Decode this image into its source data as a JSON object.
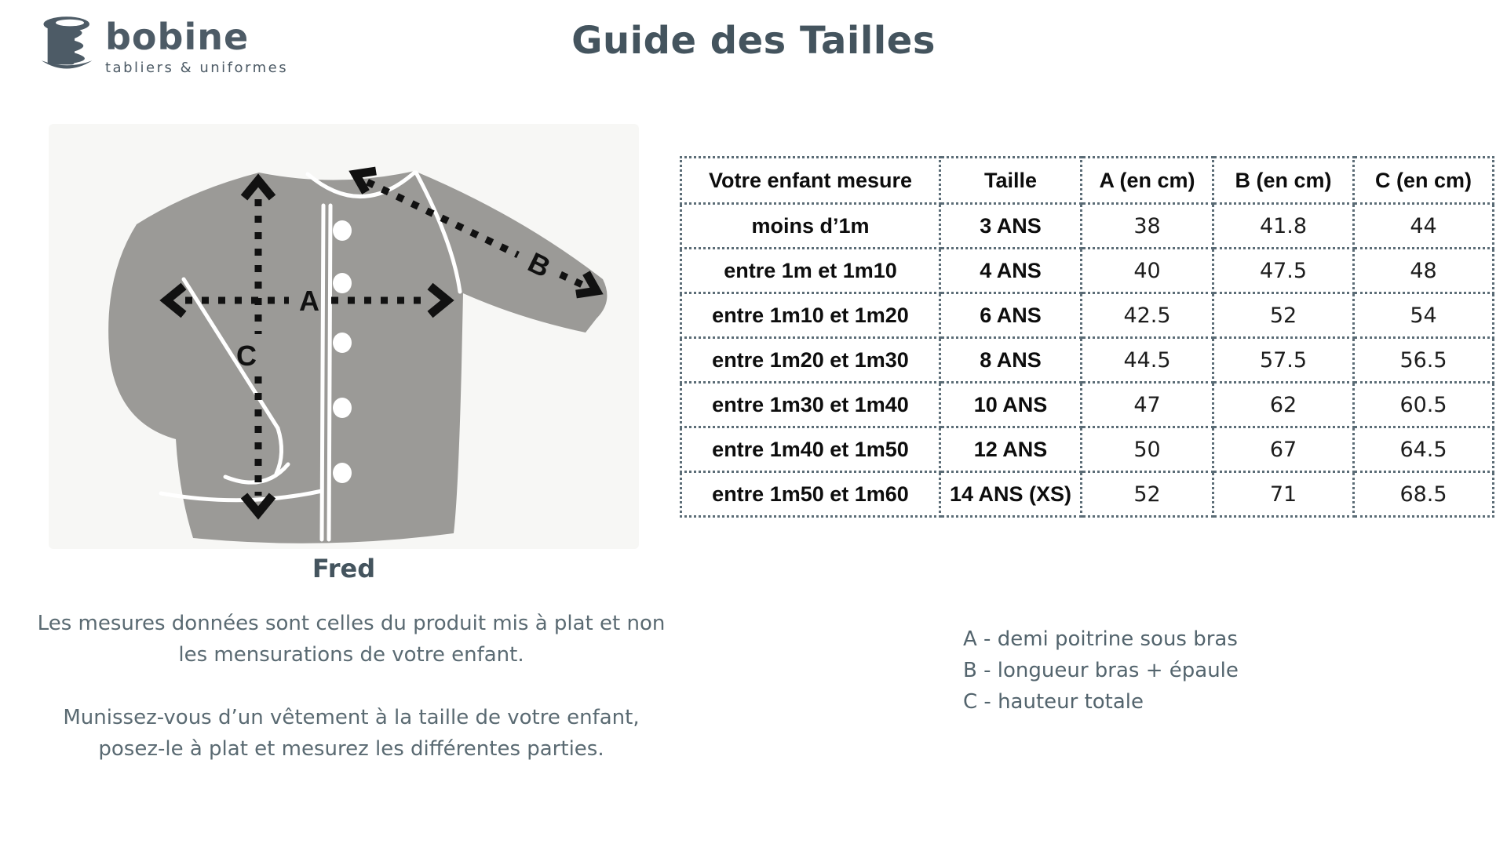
{
  "brand": {
    "name": "bobine",
    "tagline": "tabliers & uniformes"
  },
  "header": {
    "title": "Guide des Tailles"
  },
  "product": {
    "name": "Fred"
  },
  "notes": [
    "Les mesures données sont celles du produit mis à plat et non les mensurations de votre enfant.",
    "Munissez-vous d’un vêtement à la taille de votre enfant, posez-le à plat et mesurez les différentes parties."
  ],
  "legend": [
    "A - demi poitrine sous bras",
    "B - longueur bras + épaule",
    "C - hauteur totale"
  ],
  "size_table": {
    "columns": [
      "Votre enfant mesure",
      "Taille",
      "A (en cm)",
      "B (en cm)",
      "C (en cm)"
    ],
    "rows": [
      [
        "moins d’1m",
        "3 ANS",
        "38",
        "41.8",
        "44"
      ],
      [
        "entre 1m et 1m10",
        "4 ANS",
        "40",
        "47.5",
        "48"
      ],
      [
        "entre 1m10 et 1m20",
        "6 ANS",
        "42.5",
        "52",
        "54"
      ],
      [
        "entre 1m20 et 1m30",
        "8 ANS",
        "44.5",
        "57.5",
        "56.5"
      ],
      [
        "entre 1m30 et 1m40",
        "10 ANS",
        "47",
        "62",
        "60.5"
      ],
      [
        "entre 1m40 et 1m50",
        "12 ANS",
        "50",
        "67",
        "64.5"
      ],
      [
        "entre 1m50 et 1m60",
        "14 ANS (XS)",
        "52",
        "71",
        "68.5"
      ]
    ]
  },
  "diagram": {
    "labels": {
      "a": "A",
      "b": "B",
      "c": "C"
    }
  },
  "colors": {
    "heading": "#44545e",
    "body_text": "#5a6a72",
    "logo": "#4d5b66",
    "table_text": "#1a1a1a",
    "table_border": "#5b6c76",
    "garment_gray": "#9b9a97",
    "arrow_black": "#111111",
    "illustration_bg": "#f7f7f5"
  }
}
